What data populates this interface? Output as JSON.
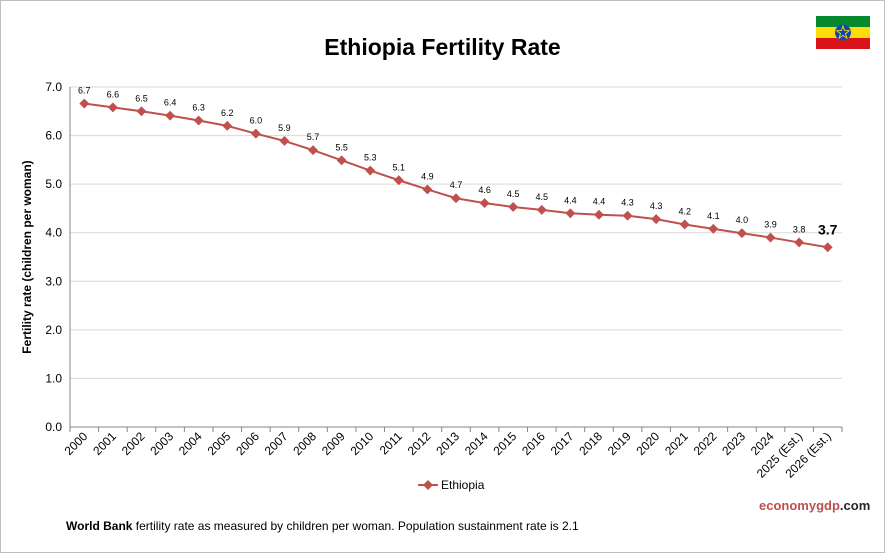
{
  "title": "Ethiopia Fertility Rate",
  "footnote": {
    "bold": "World Bank",
    "text": " fertility rate as measured by children per woman.  Population sustainment rate is 2.1"
  },
  "brand": {
    "part1": "economy",
    "part2": "gdp",
    "part3": ".com"
  },
  "flag": {
    "icon": "ethiopia-flag-icon",
    "colors": [
      "#078930",
      "#fcdd09",
      "#da121a",
      "#0f47af"
    ]
  },
  "chart_data": {
    "type": "line",
    "title": "Ethiopia Fertility Rate",
    "ylabel": "Fertility rate (children per woman)",
    "xlabel": "",
    "ylim": [
      0,
      7
    ],
    "yticks": [
      "0.0",
      "1.0",
      "2.0",
      "3.0",
      "4.0",
      "5.0",
      "6.0",
      "7.0"
    ],
    "grid": true,
    "legend": "bottom",
    "categories": [
      "2000",
      "2001",
      "2002",
      "2003",
      "2004",
      "2005",
      "2006",
      "2007",
      "2008",
      "2009",
      "2010",
      "2011",
      "2012",
      "2013",
      "2014",
      "2015",
      "2016",
      "2017",
      "2018",
      "2019",
      "2020",
      "2021",
      "2022",
      "2023",
      "2024",
      "2025 (Est.)",
      "2026 (Est.)"
    ],
    "series": [
      {
        "name": "Ethiopia",
        "color": "#c0504d",
        "values": [
          6.66,
          6.58,
          6.5,
          6.41,
          6.31,
          6.2,
          6.04,
          5.89,
          5.7,
          5.49,
          5.28,
          5.08,
          4.89,
          4.71,
          4.61,
          4.53,
          4.47,
          4.4,
          4.37,
          4.35,
          4.28,
          4.17,
          4.08,
          3.99,
          3.9,
          3.8,
          3.7
        ],
        "labels": [
          "6.7",
          "6.6",
          "6.5",
          "6.4",
          "6.3",
          "6.2",
          "6.0",
          "5.9",
          "5.7",
          "5.5",
          "5.3",
          "5.1",
          "4.9",
          "4.7",
          "4.6",
          "4.5",
          "4.5",
          "4.4",
          "4.4",
          "4.3",
          "4.3",
          "4.2",
          "4.1",
          "4.0",
          "3.9",
          "3.8",
          "3.7"
        ]
      }
    ]
  }
}
